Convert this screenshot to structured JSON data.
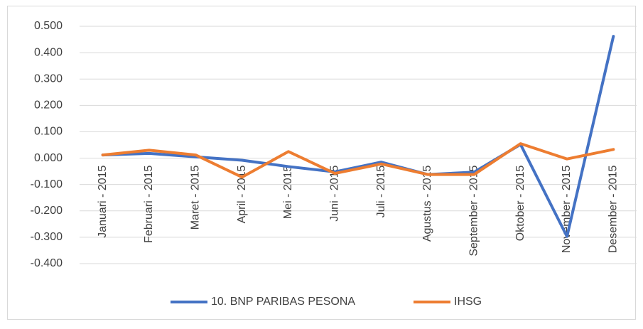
{
  "chart_data": {
    "type": "line",
    "categories": [
      "Januari - 2015",
      "Februari - 2015",
      "Maret - 2015",
      "April - 2015",
      "Mei - 2015",
      "Juni - 2015",
      "Juli - 2015",
      "Agustus - 2015",
      "September - 2015",
      "Oktober - 2015",
      "November - 2015",
      "Desember - 2015"
    ],
    "series": [
      {
        "name": "10. BNP PARIBAS PESONA",
        "color": "#4472c4",
        "values": [
          0.012,
          0.018,
          0.005,
          -0.008,
          -0.032,
          -0.052,
          -0.015,
          -0.062,
          -0.053,
          0.052,
          -0.297,
          0.462
        ]
      },
      {
        "name": "IHSG",
        "color": "#ed7d31",
        "values": [
          0.012,
          0.03,
          0.012,
          -0.072,
          0.025,
          -0.058,
          -0.022,
          -0.062,
          -0.062,
          0.055,
          -0.003,
          0.033
        ]
      }
    ],
    "ylim": [
      -0.4,
      0.5
    ],
    "yticks": [
      {
        "value": -0.4,
        "label": "-0.400"
      },
      {
        "value": -0.3,
        "label": "-0.300"
      },
      {
        "value": -0.2,
        "label": "-0.200"
      },
      {
        "value": -0.1,
        "label": "-0.100"
      },
      {
        "value": 0,
        "label": "0.000"
      },
      {
        "value": 0.1,
        "label": "0.100"
      },
      {
        "value": 0.2,
        "label": "0.200"
      },
      {
        "value": 0.3,
        "label": "0.300"
      },
      {
        "value": 0.4,
        "label": "0.400"
      },
      {
        "value": 0.5,
        "label": "0.500"
      }
    ],
    "grid": true,
    "legend": "bottom"
  }
}
